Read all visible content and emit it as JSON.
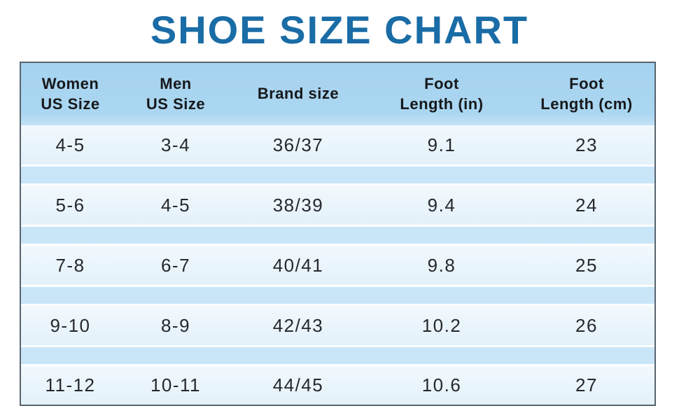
{
  "title": "SHOE SIZE CHART",
  "colors": {
    "title": "#1a6ca6",
    "header_bg": "#a9d5f0",
    "separator_bg": "#c9e5f8",
    "row_bg": "#e9f4fb",
    "border": "#57646e",
    "text": "#26292c"
  },
  "table": {
    "headers": [
      [
        "Women",
        "US Size"
      ],
      [
        "Men",
        "US Size"
      ],
      [
        "Brand size"
      ],
      [
        "Foot",
        "Length (in)"
      ],
      [
        "Foot",
        "Length (cm)"
      ]
    ]
  },
  "chart_data": {
    "type": "table",
    "title": "SHOE SIZE CHART",
    "columns": [
      "Women US Size",
      "Men US Size",
      "Brand size",
      "Foot Length (in)",
      "Foot Length (cm)"
    ],
    "rows": [
      [
        "4-5",
        "3-4",
        "36/37",
        "9.1",
        "23"
      ],
      [
        "5-6",
        "4-5",
        "38/39",
        "9.4",
        "24"
      ],
      [
        "7-8",
        "6-7",
        "40/41",
        "9.8",
        "25"
      ],
      [
        "9-10",
        "8-9",
        "42/43",
        "10.2",
        "26"
      ],
      [
        "11-12",
        "10-11",
        "44/45",
        "10.6",
        "27"
      ]
    ]
  }
}
